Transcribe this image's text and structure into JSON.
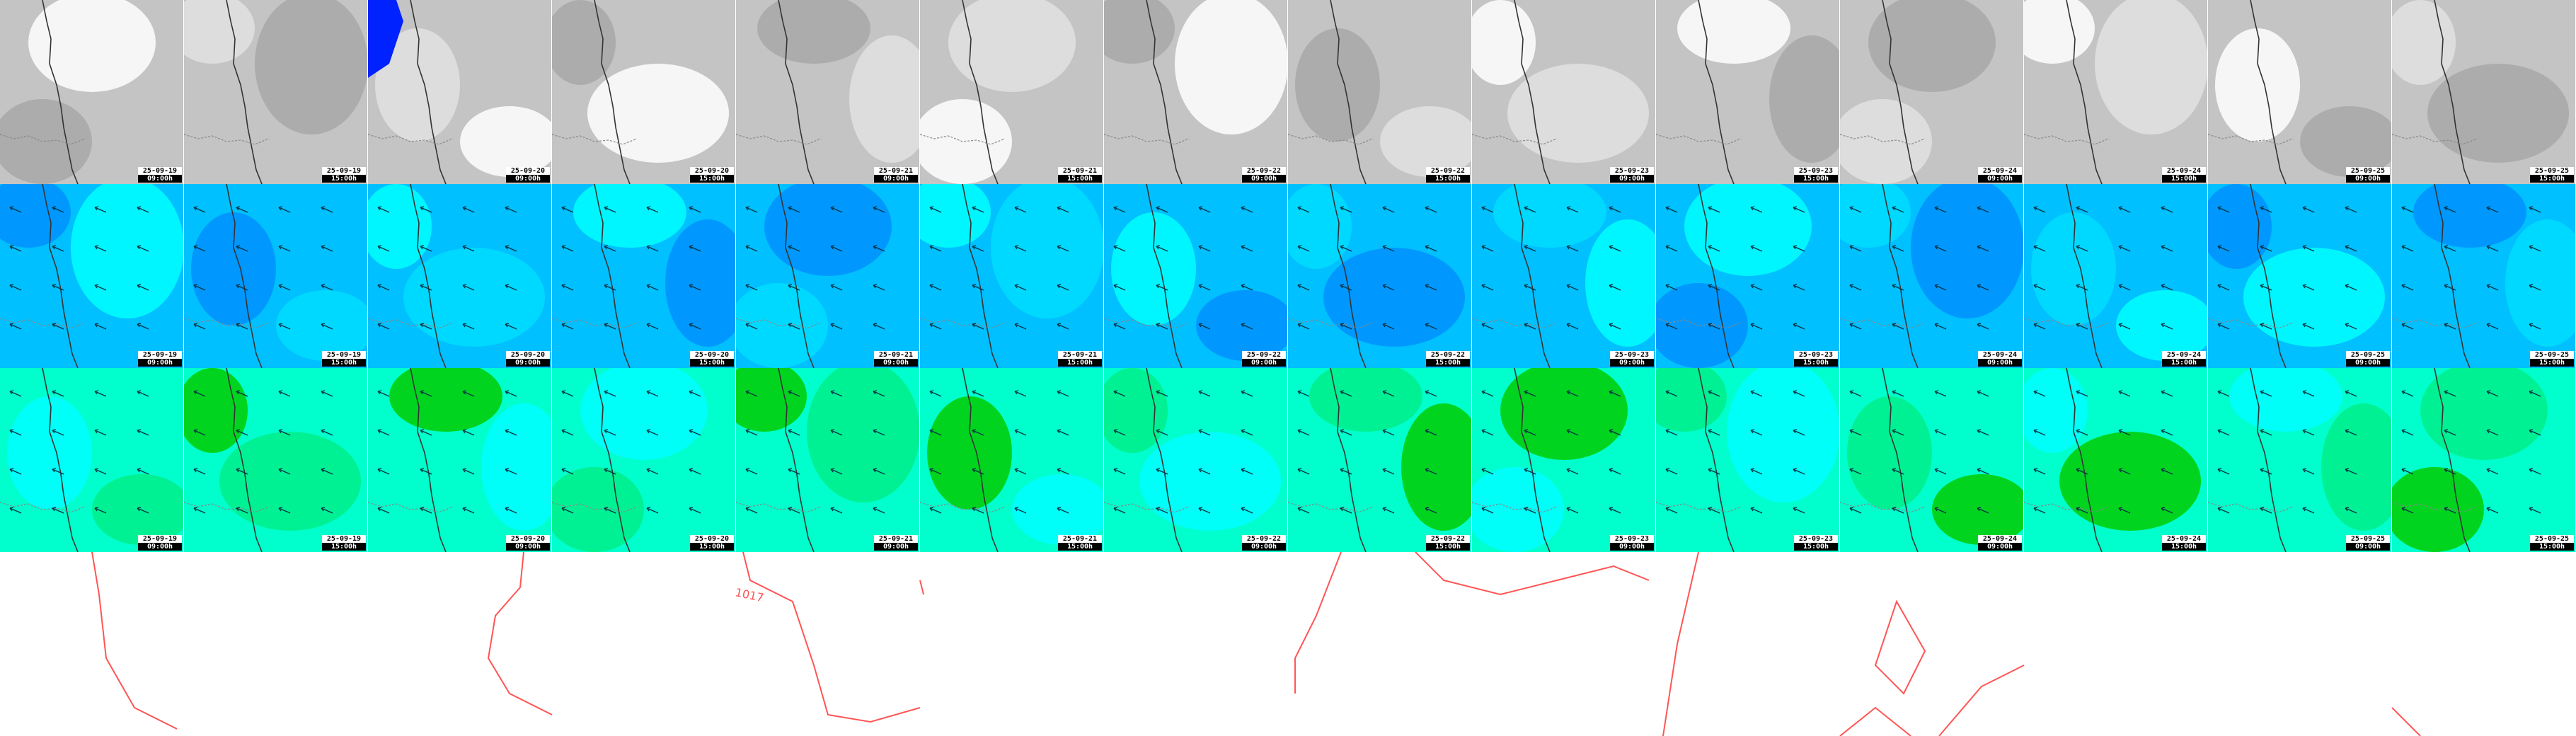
{
  "timesteps": [
    {
      "date": "25-09-19",
      "hour": "09:00h"
    },
    {
      "date": "25-09-19",
      "hour": "15:00h"
    },
    {
      "date": "25-09-20",
      "hour": "09:00h"
    },
    {
      "date": "25-09-20",
      "hour": "15:00h"
    },
    {
      "date": "25-09-21",
      "hour": "09:00h"
    },
    {
      "date": "25-09-21",
      "hour": "15:00h"
    },
    {
      "date": "25-09-22",
      "hour": "09:00h"
    },
    {
      "date": "25-09-22",
      "hour": "15:00h"
    },
    {
      "date": "25-09-23",
      "hour": "09:00h"
    },
    {
      "date": "25-09-23",
      "hour": "15:00h"
    },
    {
      "date": "25-09-24",
      "hour": "09:00h"
    },
    {
      "date": "25-09-24",
      "hour": "15:00h"
    },
    {
      "date": "25-09-25",
      "hour": "09:00h"
    },
    {
      "date": "25-09-25",
      "hour": "15:00h"
    }
  ],
  "rows": [
    {
      "name": "cloud-cover-row",
      "base": "#c4c4c4",
      "blobs": [
        "#ffffff",
        "#a8a8a8",
        "#e2e2e2"
      ]
    },
    {
      "name": "wave-height-row",
      "base": "#00c0ff",
      "blobs": [
        "#00ffff",
        "#0090ff",
        "#00ddff"
      ]
    },
    {
      "name": "wind-speed-row",
      "base": "#00ffcc",
      "blobs": [
        "#00ffff",
        "#00ee88",
        "#00cc00"
      ]
    }
  ],
  "colors": {
    "coastline": "#333333",
    "arrow": "#003344",
    "isobar": "#ff5555"
  },
  "pressure": {
    "label": "1017"
  }
}
